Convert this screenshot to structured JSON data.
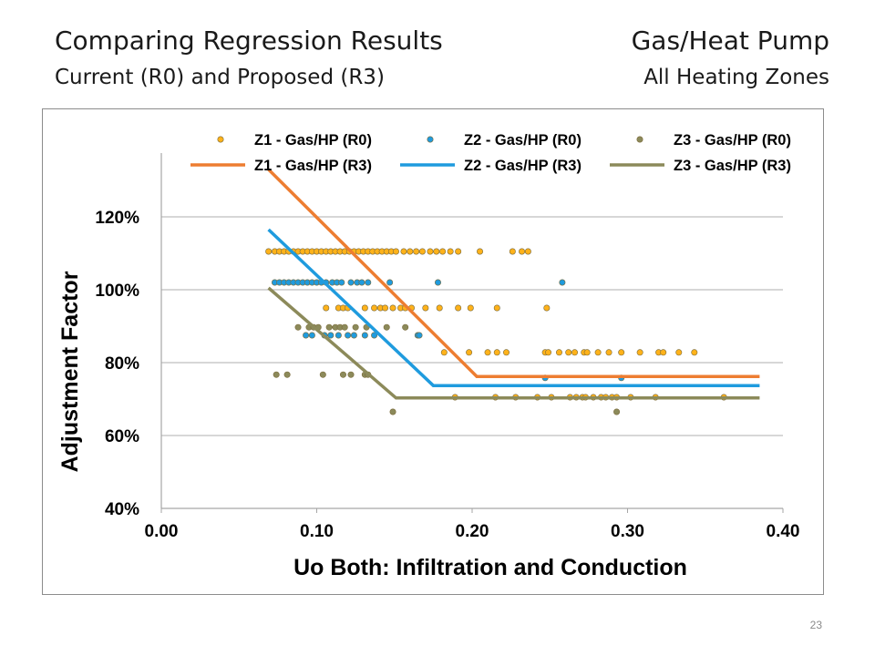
{
  "slide": {
    "title_left": "Comparing Regression Results",
    "subtitle_left": "Current (R0) and Proposed (R3)",
    "title_right": "Gas/Heat Pump",
    "subtitle_right": "All Heating Zones",
    "page_number": "23"
  },
  "colors": {
    "z1": "#ED7D31",
    "z1_marker": "#FFB21A",
    "z2": "#1F9BDE",
    "z2_marker": "#1F9BDE",
    "z3": "#8C8A5A",
    "z3_marker": "#8C8A5A",
    "grid": "#BFBFBF"
  },
  "chart_data": {
    "type": "scatter",
    "xlabel": "Uo Both:  Infiltration and Conduction",
    "ylabel": "Adjustment Factor",
    "xlim": [
      0.0,
      0.4
    ],
    "ylim": [
      0.4,
      1.35
    ],
    "x_ticks": [
      "0.00",
      "0.10",
      "0.20",
      "0.30",
      "0.40"
    ],
    "x_tick_values": [
      0.0,
      0.1,
      0.2,
      0.3,
      0.4
    ],
    "y_ticks": [
      "40%",
      "60%",
      "80%",
      "100%",
      "120%"
    ],
    "y_tick_values": [
      0.4,
      0.6,
      0.8,
      1.0,
      1.2
    ],
    "grid": "horizontal",
    "legend_position": "top",
    "series": [
      {
        "name": "Z1 - Gas/HP (R0)",
        "type": "scatter",
        "zone": "z1",
        "points": [
          [
            0.069,
            1.105
          ],
          [
            0.073,
            1.105
          ],
          [
            0.076,
            1.105
          ],
          [
            0.079,
            1.105
          ],
          [
            0.082,
            1.105
          ],
          [
            0.085,
            1.105
          ],
          [
            0.088,
            1.105
          ],
          [
            0.091,
            1.105
          ],
          [
            0.094,
            1.105
          ],
          [
            0.097,
            1.105
          ],
          [
            0.1,
            1.105
          ],
          [
            0.103,
            1.105
          ],
          [
            0.106,
            1.105
          ],
          [
            0.109,
            1.105
          ],
          [
            0.112,
            1.105
          ],
          [
            0.115,
            1.105
          ],
          [
            0.118,
            1.105
          ],
          [
            0.121,
            1.105
          ],
          [
            0.124,
            1.105
          ],
          [
            0.127,
            1.105
          ],
          [
            0.13,
            1.105
          ],
          [
            0.133,
            1.105
          ],
          [
            0.136,
            1.105
          ],
          [
            0.139,
            1.105
          ],
          [
            0.142,
            1.105
          ],
          [
            0.145,
            1.105
          ],
          [
            0.148,
            1.105
          ],
          [
            0.151,
            1.105
          ],
          [
            0.156,
            1.105
          ],
          [
            0.16,
            1.105
          ],
          [
            0.164,
            1.105
          ],
          [
            0.168,
            1.105
          ],
          [
            0.173,
            1.105
          ],
          [
            0.177,
            1.105
          ],
          [
            0.181,
            1.105
          ],
          [
            0.186,
            1.105
          ],
          [
            0.191,
            1.105
          ],
          [
            0.205,
            1.105
          ],
          [
            0.226,
            1.105
          ],
          [
            0.232,
            1.105
          ],
          [
            0.236,
            1.105
          ],
          [
            0.106,
            0.95
          ],
          [
            0.114,
            0.95
          ],
          [
            0.117,
            0.95
          ],
          [
            0.12,
            0.95
          ],
          [
            0.131,
            0.95
          ],
          [
            0.137,
            0.95
          ],
          [
            0.141,
            0.95
          ],
          [
            0.144,
            0.95
          ],
          [
            0.149,
            0.95
          ],
          [
            0.154,
            0.95
          ],
          [
            0.157,
            0.95
          ],
          [
            0.161,
            0.95
          ],
          [
            0.17,
            0.95
          ],
          [
            0.179,
            0.95
          ],
          [
            0.191,
            0.95
          ],
          [
            0.199,
            0.95
          ],
          [
            0.216,
            0.95
          ],
          [
            0.248,
            0.95
          ],
          [
            0.182,
            0.828
          ],
          [
            0.198,
            0.828
          ],
          [
            0.21,
            0.828
          ],
          [
            0.216,
            0.828
          ],
          [
            0.222,
            0.828
          ],
          [
            0.247,
            0.828
          ],
          [
            0.249,
            0.828
          ],
          [
            0.256,
            0.828
          ],
          [
            0.262,
            0.828
          ],
          [
            0.266,
            0.828
          ],
          [
            0.272,
            0.828
          ],
          [
            0.274,
            0.828
          ],
          [
            0.281,
            0.828
          ],
          [
            0.288,
            0.828
          ],
          [
            0.296,
            0.828
          ],
          [
            0.308,
            0.828
          ],
          [
            0.32,
            0.828
          ],
          [
            0.323,
            0.828
          ],
          [
            0.333,
            0.828
          ],
          [
            0.343,
            0.828
          ],
          [
            0.189,
            0.705
          ],
          [
            0.215,
            0.705
          ],
          [
            0.228,
            0.705
          ],
          [
            0.242,
            0.705
          ],
          [
            0.251,
            0.705
          ],
          [
            0.263,
            0.705
          ],
          [
            0.267,
            0.705
          ],
          [
            0.271,
            0.705
          ],
          [
            0.273,
            0.705
          ],
          [
            0.278,
            0.705
          ],
          [
            0.283,
            0.705
          ],
          [
            0.286,
            0.705
          ],
          [
            0.29,
            0.705
          ],
          [
            0.293,
            0.705
          ],
          [
            0.302,
            0.705
          ],
          [
            0.318,
            0.705
          ],
          [
            0.362,
            0.705
          ]
        ]
      },
      {
        "name": "Z2 - Gas/HP (R0)",
        "type": "scatter",
        "zone": "z2",
        "points": [
          [
            0.073,
            1.02
          ],
          [
            0.076,
            1.02
          ],
          [
            0.079,
            1.02
          ],
          [
            0.082,
            1.02
          ],
          [
            0.085,
            1.02
          ],
          [
            0.088,
            1.02
          ],
          [
            0.091,
            1.02
          ],
          [
            0.094,
            1.02
          ],
          [
            0.097,
            1.02
          ],
          [
            0.1,
            1.02
          ],
          [
            0.103,
            1.02
          ],
          [
            0.106,
            1.02
          ],
          [
            0.11,
            1.02
          ],
          [
            0.113,
            1.02
          ],
          [
            0.116,
            1.02
          ],
          [
            0.122,
            1.02
          ],
          [
            0.126,
            1.02
          ],
          [
            0.129,
            1.02
          ],
          [
            0.133,
            1.02
          ],
          [
            0.147,
            1.02
          ],
          [
            0.178,
            1.02
          ],
          [
            0.258,
            1.02
          ],
          [
            0.093,
            0.875
          ],
          [
            0.097,
            0.875
          ],
          [
            0.105,
            0.875
          ],
          [
            0.109,
            0.875
          ],
          [
            0.114,
            0.875
          ],
          [
            0.12,
            0.875
          ],
          [
            0.124,
            0.875
          ],
          [
            0.131,
            0.875
          ],
          [
            0.137,
            0.875
          ],
          [
            0.165,
            0.875
          ],
          [
            0.166,
            0.875
          ],
          [
            0.247,
            0.758
          ],
          [
            0.296,
            0.758
          ]
        ]
      },
      {
        "name": "Z3 - Gas/HP (R0)",
        "type": "scatter",
        "zone": "z3",
        "points": [
          [
            0.088,
            0.897
          ],
          [
            0.095,
            0.897
          ],
          [
            0.098,
            0.897
          ],
          [
            0.101,
            0.897
          ],
          [
            0.108,
            0.897
          ],
          [
            0.112,
            0.897
          ],
          [
            0.115,
            0.897
          ],
          [
            0.118,
            0.897
          ],
          [
            0.125,
            0.897
          ],
          [
            0.132,
            0.897
          ],
          [
            0.145,
            0.897
          ],
          [
            0.157,
            0.897
          ],
          [
            0.074,
            0.767
          ],
          [
            0.081,
            0.767
          ],
          [
            0.104,
            0.767
          ],
          [
            0.117,
            0.767
          ],
          [
            0.122,
            0.767
          ],
          [
            0.131,
            0.767
          ],
          [
            0.133,
            0.767
          ],
          [
            0.149,
            0.665
          ],
          [
            0.293,
            0.665
          ]
        ]
      },
      {
        "name": "Z1 - Gas/HP (R3)",
        "type": "line",
        "zone": "z1",
        "points": [
          [
            0.069,
            1.33
          ],
          [
            0.203,
            0.762
          ],
          [
            0.385,
            0.762
          ]
        ]
      },
      {
        "name": "Z2 - Gas/HP (R3)",
        "type": "line",
        "zone": "z2",
        "points": [
          [
            0.069,
            1.165
          ],
          [
            0.175,
            0.737
          ],
          [
            0.385,
            0.737
          ]
        ]
      },
      {
        "name": "Z3 - Gas/HP (R3)",
        "type": "line",
        "zone": "z3",
        "points": [
          [
            0.069,
            1.005
          ],
          [
            0.151,
            0.703
          ],
          [
            0.385,
            0.703
          ]
        ]
      }
    ]
  }
}
